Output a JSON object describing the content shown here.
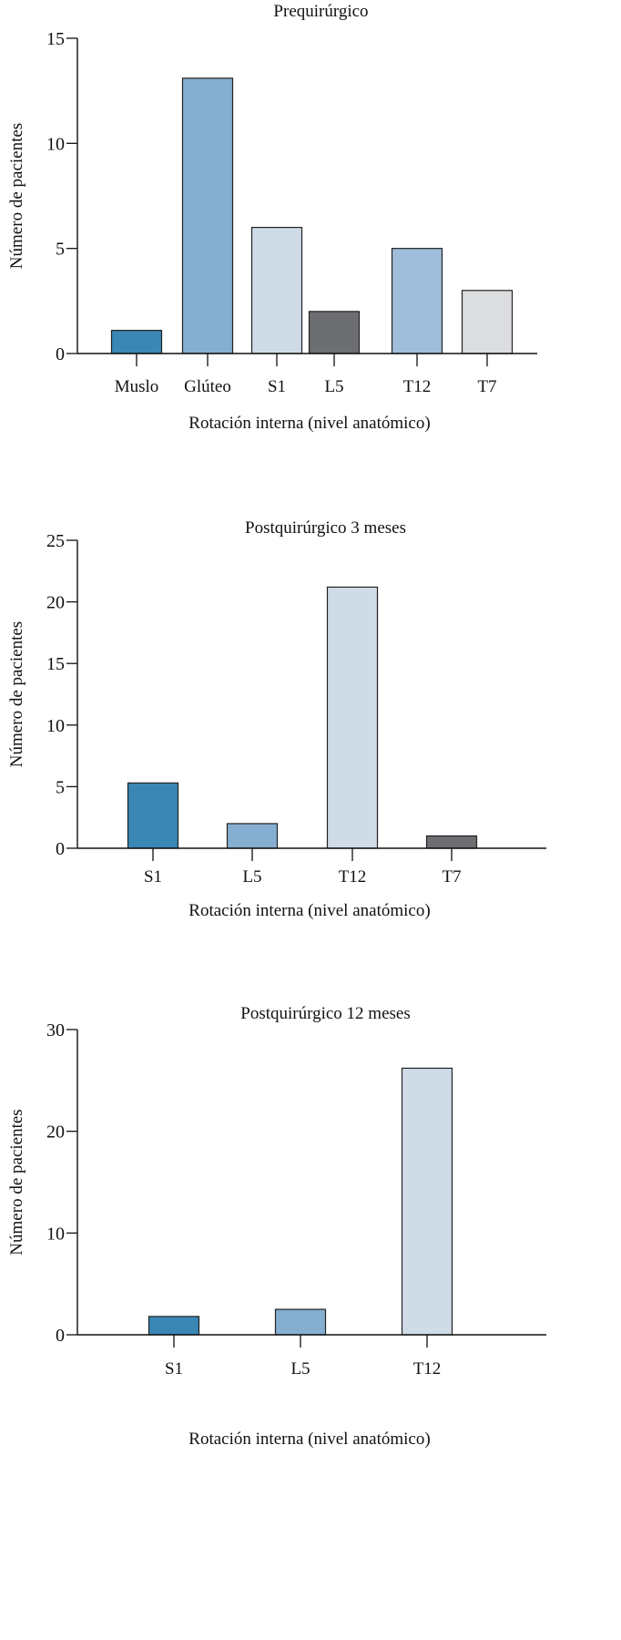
{
  "chart_data": [
    {
      "type": "bar",
      "title": "Prequirúrgico",
      "xlabel": "Rotación interna (nivel anatómico)",
      "ylabel": "Número de pacientes",
      "ylim": [
        0,
        15
      ],
      "yticks": [
        "0",
        "5",
        "10",
        "15"
      ],
      "categories": [
        "Muslo",
        "Glúteo",
        "S1",
        "L5",
        "T12",
        "T7"
      ],
      "values": [
        1.1,
        13.1,
        6,
        2,
        5,
        3
      ],
      "colors": [
        "#3a87b5",
        "#85aed0",
        "#cfdce8",
        "#6d6e72",
        "#a0bedb",
        "#dcdddf"
      ],
      "grid": false
    },
    {
      "type": "bar",
      "title": "Postquirúrgico 3 meses",
      "xlabel": "Rotación interna (nivel anatómico)",
      "ylabel": "Número de pacientes",
      "ylim": [
        0,
        25
      ],
      "yticks": [
        "0",
        "5",
        "10",
        "15",
        "20",
        "25"
      ],
      "categories": [
        "S1",
        "L5",
        "T12",
        "T7"
      ],
      "values": [
        5.3,
        2,
        21.2,
        1
      ],
      "colors": [
        "#3a87b5",
        "#85aed0",
        "#cfdce8",
        "#6d6e72"
      ],
      "grid": false
    },
    {
      "type": "bar",
      "title": "Postquirúrgico 12 meses",
      "xlabel": "Rotación interna (nivel anatómico)",
      "ylabel": "Número de pacientes",
      "ylim": [
        0,
        30
      ],
      "yticks": [
        "0",
        "10",
        "20",
        "30"
      ],
      "categories": [
        "S1",
        "L5",
        "T12"
      ],
      "values": [
        1.8,
        2.5,
        26.2
      ],
      "colors": [
        "#3a87b5",
        "#85aed0",
        "#cfdce8"
      ],
      "grid": false
    }
  ]
}
